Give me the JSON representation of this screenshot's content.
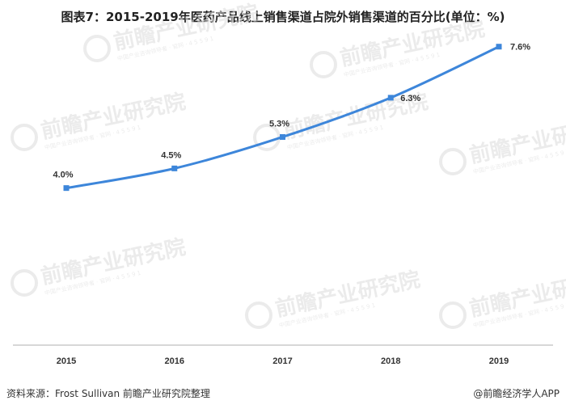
{
  "title": "图表7：2015-2019年医药产品线上销售渠道占院外销售渠道的百分比(单位：%)",
  "watermark": {
    "text": "前瞻产业研究院",
    "sub": "中国产业咨询领导者 · 官网 · 4 5 5 9 1"
  },
  "footer": {
    "source": "资料来源：Frost Sullivan  前瞻产业研究院整理",
    "brand": "@前瞻经济学人APP"
  },
  "colors": {
    "line": "#3D86DA",
    "axis": "#BFBFBF",
    "text": "#333333",
    "watermark": "#DCDCDC"
  },
  "chart_data": {
    "type": "line",
    "title": "图表7：2015-2019年医药产品线上销售渠道占院外销售渠道的百分比(单位：%)",
    "categories": [
      "2015",
      "2016",
      "2017",
      "2018",
      "2019"
    ],
    "series": [
      {
        "values": [
          4.0,
          4.5,
          5.3,
          6.3,
          7.6
        ],
        "labels": [
          "4.0%",
          "4.5%",
          "5.3%",
          "6.3%",
          "7.6%"
        ]
      }
    ],
    "ylim": [
      0,
      8.5
    ],
    "grid": false,
    "legend": "none"
  }
}
